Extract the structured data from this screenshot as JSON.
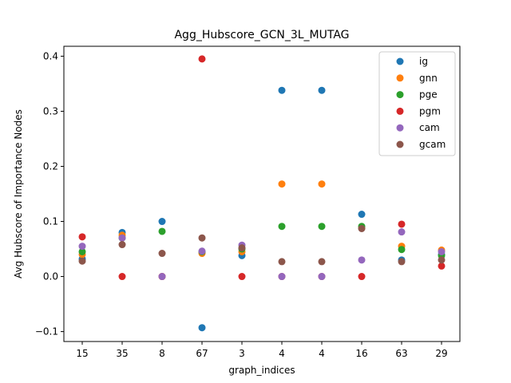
{
  "chart_data": {
    "type": "scatter",
    "title": "Agg_Hubscore_GCN_3L_MUTAG",
    "xlabel": "graph_indices",
    "ylabel": "Avg Hubscore of Importance Nodes",
    "categories": [
      "15",
      "35",
      "8",
      "67",
      "3",
      "4",
      "4",
      "16",
      "63",
      "29"
    ],
    "ylim": [
      -0.118,
      0.418
    ],
    "yticks": [
      -0.1,
      0.0,
      0.1,
      0.2,
      0.3,
      0.4
    ],
    "ytick_labels": [
      "−0.1",
      "0.0",
      "0.1",
      "0.2",
      "0.3",
      "0.4"
    ],
    "grid": false,
    "legend_position": "top-right",
    "series": [
      {
        "name": "ig",
        "color": "#1f77b4",
        "values": [
          0.032,
          0.08,
          0.1,
          -0.093,
          0.038,
          0.338,
          0.338,
          0.113,
          0.03,
          0.04
        ]
      },
      {
        "name": "gnn",
        "color": "#ff7f0e",
        "values": [
          0.04,
          0.075,
          0.0,
          0.042,
          0.045,
          0.168,
          0.168,
          0.088,
          0.055,
          0.048
        ]
      },
      {
        "name": "pge",
        "color": "#2ca02c",
        "values": [
          0.045,
          0.07,
          0.082,
          0.045,
          0.05,
          0.091,
          0.091,
          0.091,
          0.049,
          0.038
        ]
      },
      {
        "name": "pgm",
        "color": "#d62728",
        "values": [
          0.072,
          0.0,
          0.0,
          0.395,
          0.0,
          0.0,
          0.0,
          0.0,
          0.095,
          0.019
        ]
      },
      {
        "name": "cam",
        "color": "#9467bd",
        "values": [
          0.055,
          0.07,
          0.0,
          0.046,
          0.057,
          0.0,
          0.0,
          0.03,
          0.081,
          0.045
        ]
      },
      {
        "name": "gcam",
        "color": "#8c564b",
        "values": [
          0.028,
          0.058,
          0.042,
          0.07,
          0.052,
          0.027,
          0.027,
          0.087,
          0.027,
          0.03
        ]
      }
    ]
  }
}
